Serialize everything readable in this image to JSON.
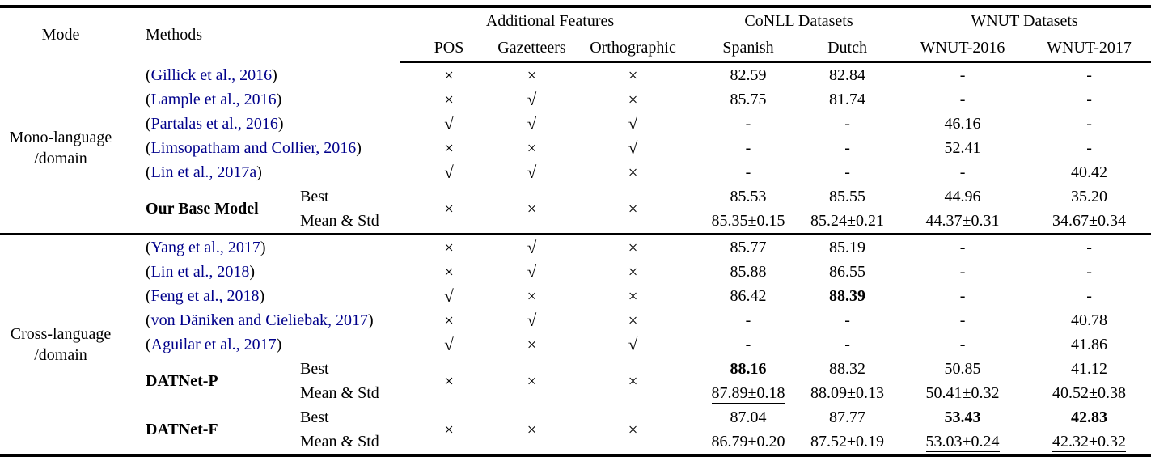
{
  "header": {
    "mode": "Mode",
    "methods": "Methods",
    "groups": [
      {
        "label": "Additional Features",
        "cols": [
          "POS",
          "Gazetteers",
          "Orthographic"
        ]
      },
      {
        "label": "CoNLL Datasets",
        "cols": [
          "Spanish",
          "Dutch"
        ]
      },
      {
        "label": "WNUT Datasets",
        "cols": [
          "WNUT-2016",
          "WNUT-2017"
        ]
      }
    ]
  },
  "symbols": {
    "yes": "√",
    "no": "×",
    "paren_open": "(",
    "paren_close": ")"
  },
  "row_labels": {
    "best": "Best",
    "mean": "Mean & Std"
  },
  "colors": {
    "citation": "#00008B"
  },
  "blocks": [
    {
      "mode_lines": [
        "Mono-language",
        "/domain"
      ],
      "citations": [
        {
          "ref": "Gillick et al., 2016",
          "features": [
            "no",
            "no",
            "no"
          ],
          "values": [
            {
              "t": "82.59"
            },
            {
              "t": "82.84"
            },
            {
              "t": "-"
            },
            {
              "t": "-"
            }
          ]
        },
        {
          "ref": "Lample et al., 2016",
          "features": [
            "no",
            "yes",
            "no"
          ],
          "values": [
            {
              "t": "85.75"
            },
            {
              "t": "81.74"
            },
            {
              "t": "-"
            },
            {
              "t": "-"
            }
          ]
        },
        {
          "ref": "Partalas et al., 2016",
          "features": [
            "yes",
            "yes",
            "yes"
          ],
          "values": [
            {
              "t": "-"
            },
            {
              "t": "-"
            },
            {
              "t": "46.16"
            },
            {
              "t": "-"
            }
          ]
        },
        {
          "ref": "Limsopatham and Collier, 2016",
          "features": [
            "no",
            "no",
            "yes"
          ],
          "values": [
            {
              "t": "-"
            },
            {
              "t": "-"
            },
            {
              "t": "52.41"
            },
            {
              "t": "-"
            }
          ]
        },
        {
          "ref": "Lin et al., 2017a",
          "features": [
            "yes",
            "yes",
            "no"
          ],
          "values": [
            {
              "t": "-"
            },
            {
              "t": "-"
            },
            {
              "t": "-"
            },
            {
              "t": "40.42"
            }
          ]
        }
      ],
      "models": [
        {
          "name": "Our Base Model",
          "features": [
            "no",
            "no",
            "no"
          ],
          "best": [
            {
              "t": "85.53"
            },
            {
              "t": "85.55"
            },
            {
              "t": "44.96"
            },
            {
              "t": "35.20"
            }
          ],
          "mean": [
            {
              "t": "85.35±0.15"
            },
            {
              "t": "85.24±0.21"
            },
            {
              "t": "44.37±0.31"
            },
            {
              "t": "34.67±0.34"
            }
          ]
        }
      ]
    },
    {
      "mode_lines": [
        "Cross-language",
        "/domain"
      ],
      "citations": [
        {
          "ref": "Yang et al., 2017",
          "features": [
            "no",
            "yes",
            "no"
          ],
          "values": [
            {
              "t": "85.77"
            },
            {
              "t": "85.19"
            },
            {
              "t": "-"
            },
            {
              "t": "-"
            }
          ]
        },
        {
          "ref": "Lin et al., 2018",
          "features": [
            "no",
            "yes",
            "no"
          ],
          "values": [
            {
              "t": "85.88"
            },
            {
              "t": "86.55"
            },
            {
              "t": "-"
            },
            {
              "t": "-"
            }
          ]
        },
        {
          "ref": "Feng et al., 2018",
          "features": [
            "yes",
            "no",
            "no"
          ],
          "values": [
            {
              "t": "86.42"
            },
            {
              "t": "88.39",
              "b": true
            },
            {
              "t": "-"
            },
            {
              "t": "-"
            }
          ]
        },
        {
          "ref": "von Däniken and Cieliebak, 2017",
          "features": [
            "no",
            "yes",
            "no"
          ],
          "values": [
            {
              "t": "-"
            },
            {
              "t": "-"
            },
            {
              "t": "-"
            },
            {
              "t": "40.78"
            }
          ]
        },
        {
          "ref": "Aguilar et al., 2017",
          "features": [
            "yes",
            "no",
            "yes"
          ],
          "values": [
            {
              "t": "-"
            },
            {
              "t": "-"
            },
            {
              "t": "-"
            },
            {
              "t": "41.86"
            }
          ]
        }
      ],
      "models": [
        {
          "name": "DATNet-P",
          "features": [
            "no",
            "no",
            "no"
          ],
          "best": [
            {
              "t": "88.16",
              "b": true
            },
            {
              "t": "88.32"
            },
            {
              "t": "50.85"
            },
            {
              "t": "41.12"
            }
          ],
          "mean": [
            {
              "t": "87.89±0.18",
              "u": true
            },
            {
              "t": "88.09±0.13"
            },
            {
              "t": "50.41±0.32"
            },
            {
              "t": "40.52±0.38"
            }
          ]
        },
        {
          "name": "DATNet-F",
          "features": [
            "no",
            "no",
            "no"
          ],
          "best": [
            {
              "t": "87.04"
            },
            {
              "t": "87.77"
            },
            {
              "t": "53.43",
              "b": true
            },
            {
              "t": "42.83",
              "b": true
            }
          ],
          "mean": [
            {
              "t": "86.79±0.20"
            },
            {
              "t": "87.52±0.19"
            },
            {
              "t": "53.03±0.24",
              "u": true
            },
            {
              "t": "42.32±0.32",
              "u": true
            }
          ]
        }
      ]
    }
  ]
}
